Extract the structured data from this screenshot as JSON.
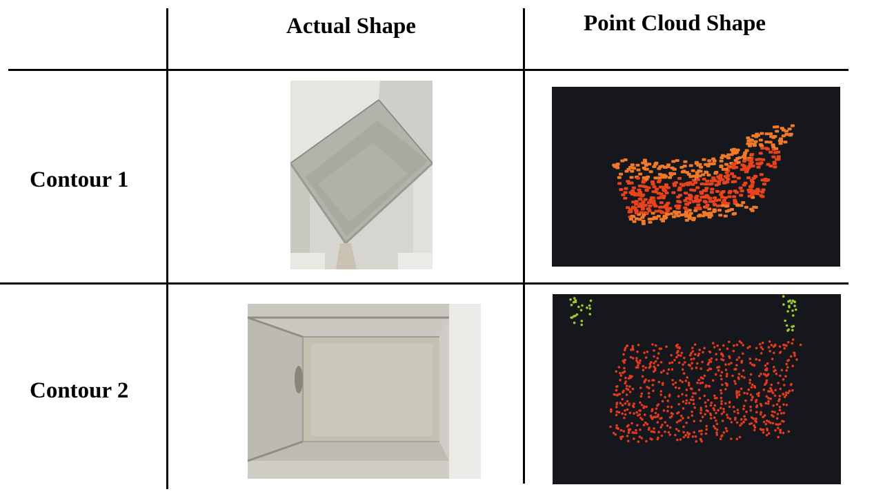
{
  "table": {
    "headers": {
      "col1": "",
      "col2": "Actual Shape",
      "col3": "Point Cloud Shape"
    },
    "rows": [
      {
        "label": "Contour 1"
      },
      {
        "label": "Contour 2"
      }
    ]
  },
  "colors": {
    "point_cloud_bg": "#16171c",
    "contour1_points_top": "#f07a2a",
    "contour1_points_mid": "#e8431a",
    "contour2_points": "#e23a1c",
    "contour2_noise_points": "#9ccc2a"
  }
}
